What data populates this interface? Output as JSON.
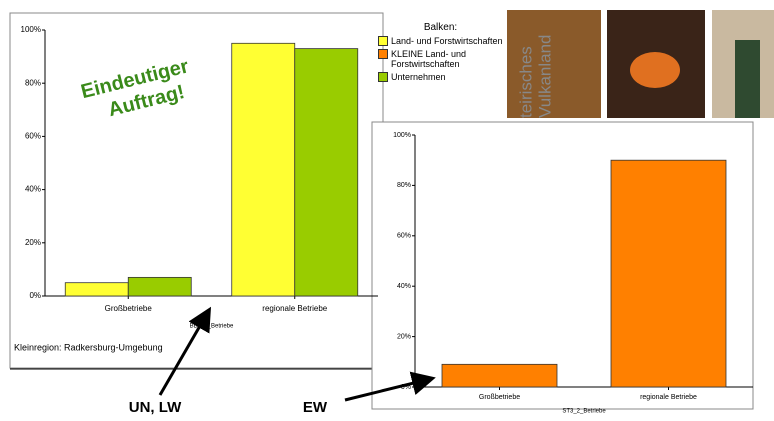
{
  "chart_data": [
    {
      "type": "bar",
      "categories": [
        "Großbetriebe",
        "regionale Betriebe"
      ],
      "series": [
        {
          "name": "Land- und Forstwirtschaften",
          "color": "#ffff33",
          "values": [
            5,
            95
          ]
        },
        {
          "name": "Unternehmen",
          "color": "#99cc00",
          "values": [
            7,
            93
          ]
        }
      ],
      "ylim": [
        0,
        100
      ],
      "yticks": [
        {
          "value": 0,
          "label": "0%"
        },
        {
          "value": 20,
          "label": "20%"
        },
        {
          "value": 40,
          "label": "40%"
        },
        {
          "value": 60,
          "label": "60%"
        },
        {
          "value": 80,
          "label": "80%"
        },
        {
          "value": 100,
          "label": "100%"
        }
      ],
      "x_label": "BB2_7_Betriebe",
      "legend_title": "Balken:",
      "annotation": [
        "Eindeutiger",
        "Auftrag!"
      ],
      "footnote": "Kleinregion: Radkersburg-Umgebung"
    },
    {
      "type": "bar",
      "categories": [
        "Großbetriebe",
        "regionale Betriebe"
      ],
      "series": [
        {
          "name": "KLEINE Land- und Forstwirtschaften",
          "color": "#ff8000",
          "values": [
            9,
            90
          ]
        }
      ],
      "ylim": [
        0,
        100
      ],
      "yticks": [
        {
          "value": 0,
          "label": "0%"
        },
        {
          "value": 20,
          "label": "20%"
        },
        {
          "value": 40,
          "label": "40%"
        },
        {
          "value": 60,
          "label": "60%"
        },
        {
          "value": 80,
          "label": "80%"
        },
        {
          "value": 100,
          "label": "100%"
        }
      ],
      "x_label": "ST3_2_Betriebe"
    }
  ],
  "slide": {
    "labels": [
      "UN, LW",
      "EW"
    ],
    "logo": [
      "teirisches",
      "Vulkanland"
    ]
  }
}
